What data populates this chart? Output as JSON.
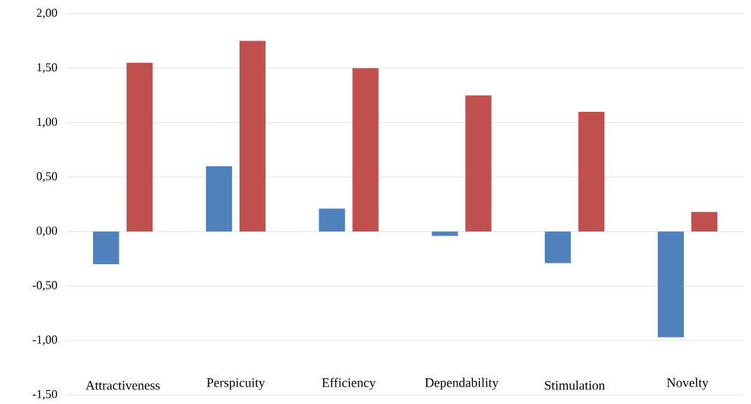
{
  "chart_data": {
    "type": "bar",
    "categories": [
      "Attractiveness",
      "Perspicuity",
      "Efficiency",
      "Dependability",
      "Stimulation",
      "Novelty"
    ],
    "series": [
      {
        "color": "#4f81bd",
        "values": [
          -0.3,
          0.6,
          0.21,
          -0.04,
          -0.29,
          -0.97
        ]
      },
      {
        "color": "#c0504d",
        "values": [
          1.55,
          1.75,
          1.5,
          1.25,
          1.1,
          0.18
        ]
      }
    ],
    "ylim": [
      -1.5,
      2
    ],
    "yticks": [
      {
        "value": -1.5,
        "label": "-1,50"
      },
      {
        "value": -1,
        "label": "-1,00"
      },
      {
        "value": -0.5,
        "label": "-0,50"
      },
      {
        "value": 0,
        "label": "0,00"
      },
      {
        "value": 0.5,
        "label": "0,50"
      },
      {
        "value": 1,
        "label": "1,00"
      },
      {
        "value": 1.5,
        "label": "1,50"
      },
      {
        "value": 2,
        "label": "2,00"
      }
    ],
    "grid": "y"
  }
}
